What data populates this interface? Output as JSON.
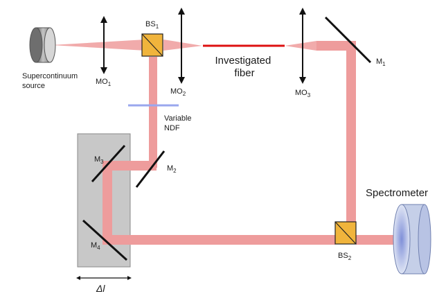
{
  "colors": {
    "beam": "#ee9c9c",
    "fiber": "#dd1111",
    "splitter_fill": "#f0b43c",
    "stage_fill": "#c8c8c8",
    "ndf": "#9aa7ee",
    "spectrometer": "#c5cfe8",
    "source": "#9c9c9c"
  },
  "labels": {
    "source": [
      "Supercontinuum",
      "source"
    ],
    "mo1": {
      "base": "MO",
      "sub": "1"
    },
    "mo2": {
      "base": "MO",
      "sub": "2"
    },
    "mo3": {
      "base": "MO",
      "sub": "3"
    },
    "bs1": {
      "base": "BS",
      "sub": "1"
    },
    "bs2": {
      "base": "BS",
      "sub": "2"
    },
    "m1": {
      "base": "M",
      "sub": "1"
    },
    "m2": {
      "base": "M",
      "sub": "2"
    },
    "m3": {
      "base": "M",
      "sub": "3"
    },
    "m4": {
      "base": "M",
      "sub": "4"
    },
    "fiber": [
      "Investigated",
      "fiber"
    ],
    "ndf": [
      "Variable",
      "NDF"
    ],
    "spectrometer": "Spectrometer",
    "delta": "Δl"
  }
}
